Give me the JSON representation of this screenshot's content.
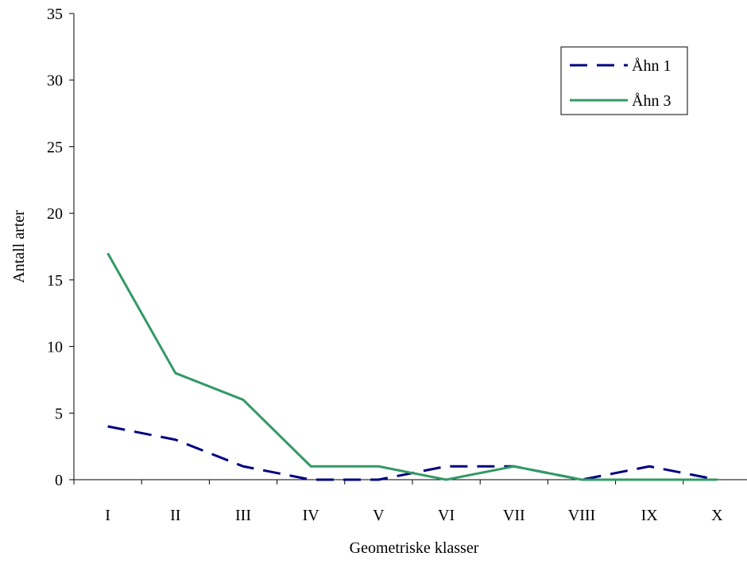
{
  "chart_data": {
    "type": "line",
    "title": "",
    "xlabel": "Geometriske klasser",
    "ylabel": "Antall arter",
    "categories": [
      "I",
      "II",
      "III",
      "IV",
      "V",
      "VI",
      "VII",
      "VIII",
      "IX",
      "X"
    ],
    "ylim": [
      0,
      35
    ],
    "yticks": [
      "0",
      "5",
      "10",
      "15",
      "20",
      "25",
      "30",
      "35"
    ],
    "grid": false,
    "legend_position": "top-right",
    "series": [
      {
        "name": "Åhn 1",
        "values": [
          4,
          3,
          1,
          0,
          0,
          1,
          1,
          0,
          1,
          0
        ],
        "color": "#000080",
        "style": "dashed"
      },
      {
        "name": "Åhn 3",
        "values": [
          17,
          8,
          6,
          1,
          1,
          0,
          1,
          0,
          0,
          0
        ],
        "color": "#339966",
        "style": "solid"
      }
    ]
  }
}
